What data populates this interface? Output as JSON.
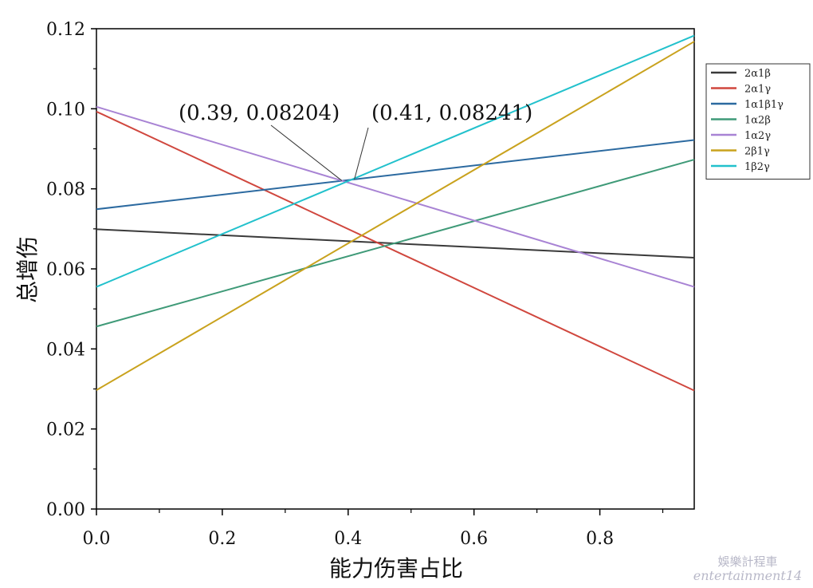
{
  "chart_data": {
    "type": "line",
    "xlabel": "能力伤害占比",
    "ylabel": "总增伤",
    "xlim": [
      0,
      0.95
    ],
    "ylim": [
      0,
      0.12
    ],
    "xticks": [
      "0.0",
      "0.2",
      "0.4",
      "0.6",
      "0.8"
    ],
    "xtick_values": [
      0,
      0.2,
      0.4,
      0.6,
      0.8
    ],
    "yticks": [
      "0.00",
      "0.02",
      "0.04",
      "0.06",
      "0.08",
      "0.10",
      "0.12"
    ],
    "ytick_values": [
      0,
      0.02,
      0.04,
      0.06,
      0.08,
      0.1,
      0.12
    ],
    "grid": false,
    "legend_position": "right",
    "series": [
      {
        "name": "2α1β",
        "color": "#3a3a3a",
        "x": [
          0,
          0.95
        ],
        "y": [
          0.0699,
          0.0628
        ]
      },
      {
        "name": "2α1γ",
        "color": "#d0473e",
        "x": [
          0,
          0.95
        ],
        "y": [
          0.0993,
          0.0296
        ]
      },
      {
        "name": "1α1β1γ",
        "color": "#2c6aa0",
        "x": [
          0,
          0.95
        ],
        "y": [
          0.0749,
          0.0922
        ]
      },
      {
        "name": "1α2β",
        "color": "#3f9a78",
        "x": [
          0,
          0.95
        ],
        "y": [
          0.0456,
          0.0873
        ]
      },
      {
        "name": "1α2γ",
        "color": "#a883d4",
        "x": [
          0,
          0.95
        ],
        "y": [
          0.1005,
          0.0555
        ]
      },
      {
        "name": "2β1γ",
        "color": "#c9a21d",
        "x": [
          0,
          0.95
        ],
        "y": [
          0.0297,
          0.1168
        ]
      },
      {
        "name": "1β2γ",
        "color": "#22c1cc",
        "x": [
          0,
          0.95
        ],
        "y": [
          0.0555,
          0.1183
        ]
      }
    ],
    "annotations": [
      {
        "text": "(0.39, 0.08204)",
        "x": 0.39,
        "y": 0.08204
      },
      {
        "text": "(0.41, 0.08241)",
        "x": 0.41,
        "y": 0.08241
      }
    ]
  },
  "watermark": {
    "line1": "娛樂計程車",
    "line2": "entertainment14"
  }
}
